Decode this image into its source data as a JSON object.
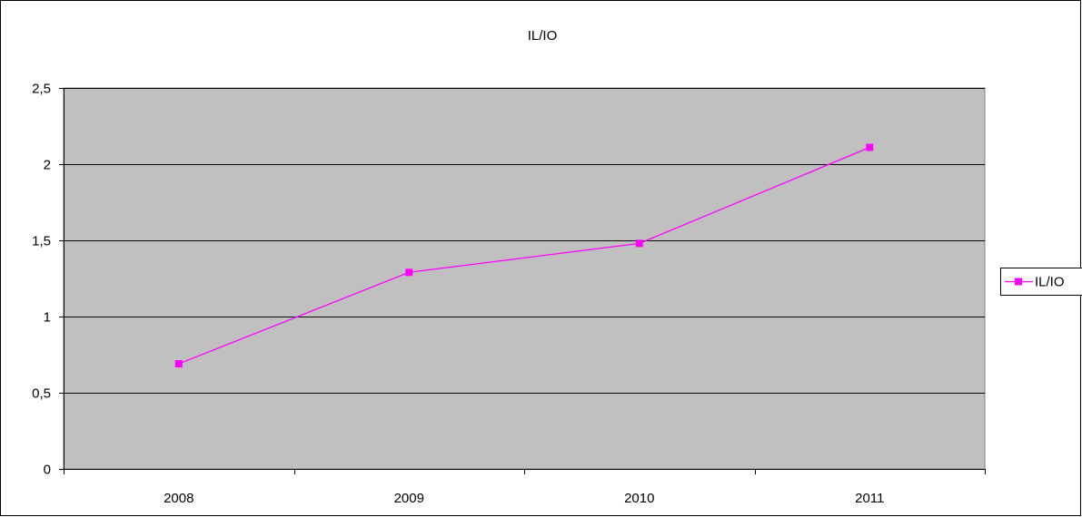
{
  "chart_data": {
    "type": "line",
    "title": "IL/IO",
    "xlabel": "",
    "ylabel": "",
    "categories": [
      "2008",
      "2009",
      "2010",
      "2011"
    ],
    "series": [
      {
        "name": "IL/IO",
        "values": [
          0.69,
          1.29,
          1.48,
          2.11
        ],
        "color": "#ff00ff"
      }
    ],
    "ylim": [
      0,
      2.5
    ],
    "y_ticks": [
      0,
      0.5,
      1,
      1.5,
      2,
      2.5
    ],
    "y_tick_labels": [
      "0",
      "0,5",
      "1",
      "1,5",
      "2",
      "2,5"
    ],
    "grid": true,
    "legend_position": "right",
    "plot_background": "#c0c0c0",
    "gridline_color": "#000000"
  }
}
